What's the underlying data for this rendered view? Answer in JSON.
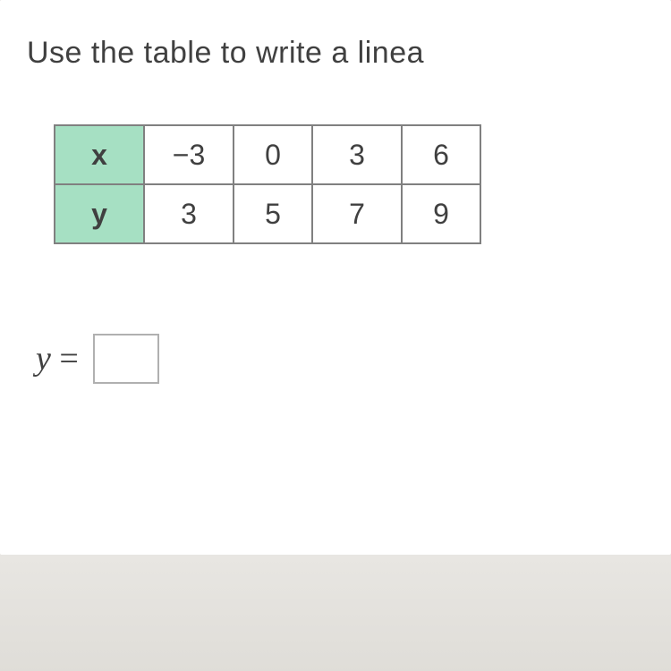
{
  "instruction": "Use the table to write a linea",
  "table": {
    "header_bg": "#a6e0c3",
    "cell_bg": "#ffffff",
    "border_color": "#808080",
    "text_color": "#404040",
    "rows": [
      {
        "label": "x",
        "values": [
          "−3",
          "0",
          "3",
          "6"
        ]
      },
      {
        "label": "y",
        "values": [
          "3",
          "5",
          "7",
          "9"
        ]
      }
    ]
  },
  "equation": {
    "lhs": "y",
    "equals": "=",
    "input_value": ""
  },
  "page_bg": "#e8e6e2",
  "content_bg": "#ffffff"
}
